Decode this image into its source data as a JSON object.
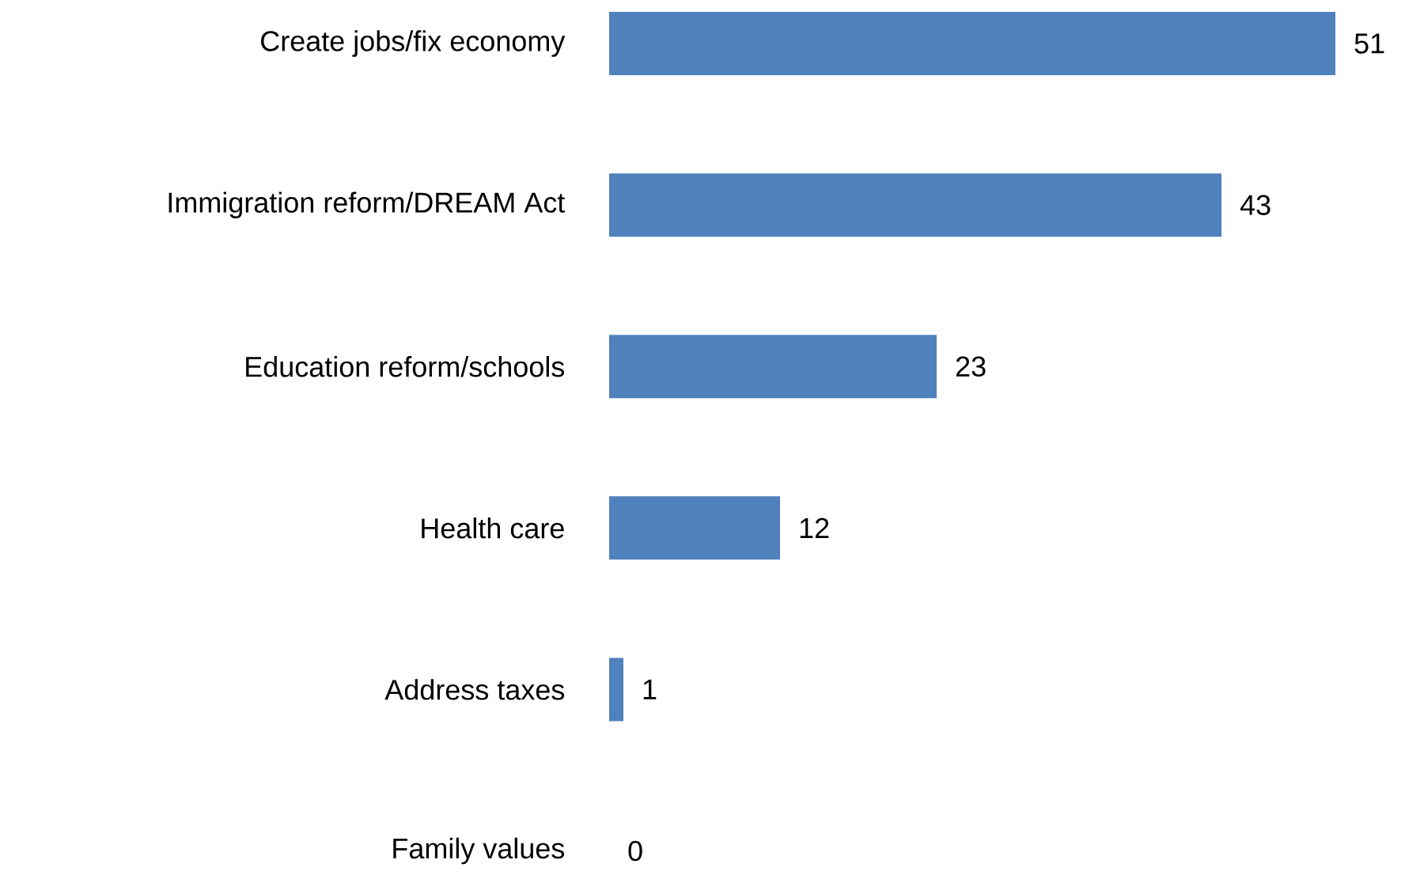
{
  "chart_data": {
    "type": "bar",
    "orientation": "horizontal",
    "categories": [
      "Create jobs/fix economy",
      "Immigration reform/DREAM Act",
      "Education reform/schools",
      "Health care",
      "Address taxes",
      "Family values"
    ],
    "values": [
      51,
      43,
      23,
      12,
      1,
      0
    ],
    "color": "#4f81bd",
    "data_labels": true,
    "tick_labels": "y"
  }
}
